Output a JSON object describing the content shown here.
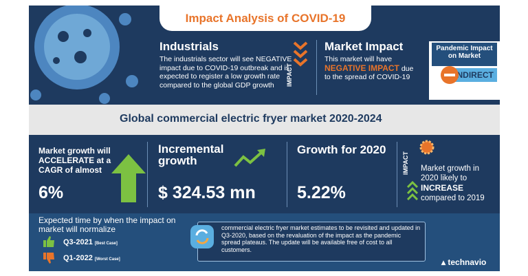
{
  "header": {
    "title": "Impact Analysis of COVID-19"
  },
  "industrials": {
    "heading": "Industrials",
    "text": "The industrials sector will see NEGATIVE impact due to COVID-19 outbreak and is expected to register a low growth rate compared to the global GDP growth",
    "side_label": "IMPACT"
  },
  "market_impact": {
    "heading": "Market Impact",
    "text_before": "This market will have",
    "highlight": "NEGATIVE IMPACT",
    "text_after": "due to the spread of COVID-19"
  },
  "pandemic": {
    "heading": "Pandemic Impact on Market",
    "value": "INDIRECT"
  },
  "banner": {
    "title": "Global commercial electric fryer market 2020-2024"
  },
  "stats": [
    {
      "text": "Market growth will ACCELERATE at a CAGR of almost",
      "value": "6%"
    },
    {
      "heading": "Incremental growth",
      "value": "$ 324.53 mn"
    },
    {
      "heading": "Growth for 2020",
      "value": "5.22%"
    }
  ],
  "growth_impact": {
    "side_label": "IMPACT",
    "text_before": "Market growth in 2020 likely to",
    "highlight": "INCREASE",
    "text_after": "compared to 2019"
  },
  "normalize": {
    "heading": "Expected time by when the impact on market will normalize",
    "best": "Q3-2021",
    "best_tag": "[Best Case]",
    "worst": "Q1-2022",
    "worst_tag": "[Worst Case]"
  },
  "note": {
    "text": "commercial electric fryer market estimates to be revisited and updated in Q3-2020, based on the revaluation of the impact as the pandemic spread plateaus. The update will be available free of cost to all customers."
  },
  "brand": "technavio"
}
